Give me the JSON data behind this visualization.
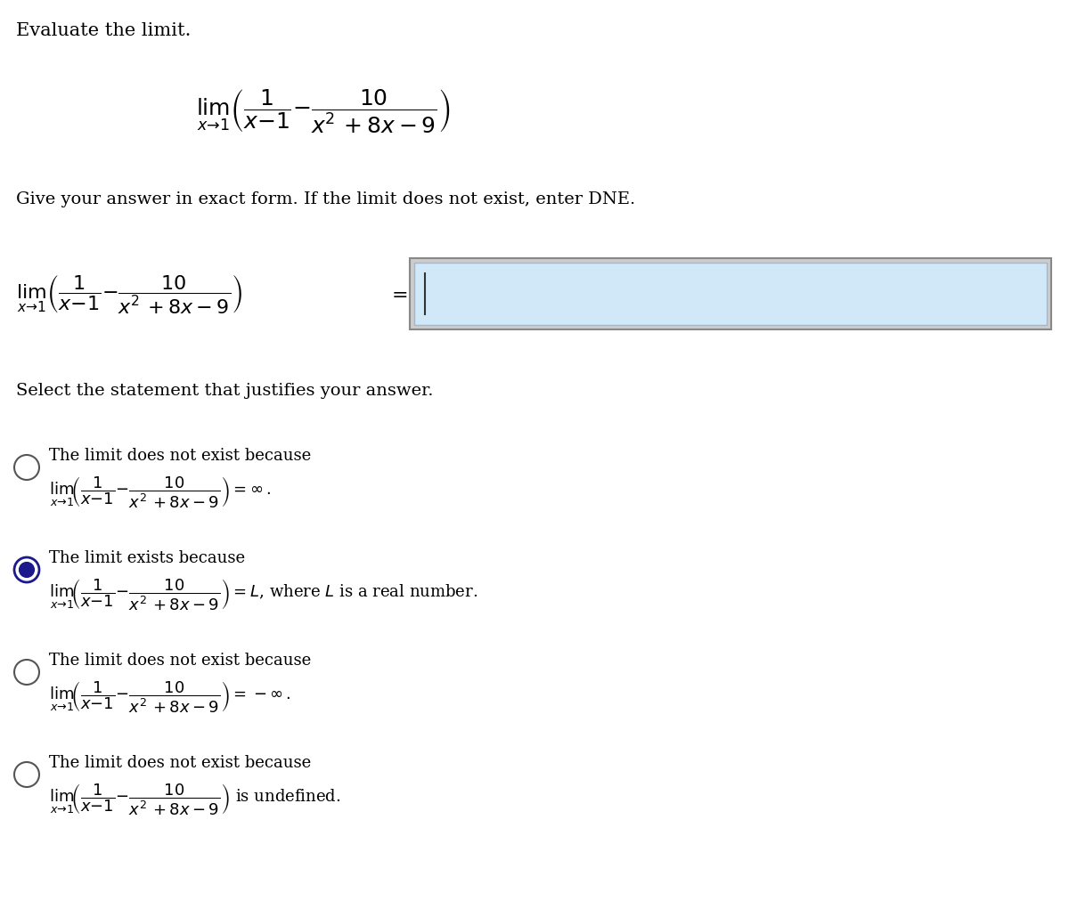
{
  "title": "Evaluate the limit.",
  "instruction": "Give your answer in exact form. If the limit does not exist, enter DNE.",
  "select_statement": "Select the statement that justifies your answer.",
  "main_formula": "$\\lim_{x\\to 1}\\left(\\dfrac{1}{x-1} - \\dfrac{10}{x^2+8x-9}\\right)$",
  "equals_sign": "=",
  "options": [
    {
      "text": "The limit does not exist because ",
      "formula": "$\\lim_{x\\to 1}\\left(\\dfrac{1}{x-1} - \\dfrac{10}{x^2+8x-9}\\right) = \\infty$.",
      "selected": false
    },
    {
      "text": "The limit exists because ",
      "formula": "$\\lim_{x\\to 1}\\left(\\dfrac{1}{x-1} - \\dfrac{10}{x^2+8x-9}\\right) = L$, where $L$ is a real number.",
      "selected": true
    },
    {
      "text": "The limit does not exist because ",
      "formula": "$\\lim_{x\\to 1}\\left(\\dfrac{1}{x-1} - \\dfrac{10}{x^2+8x-9}\\right) = -\\infty$.",
      "selected": false
    },
    {
      "text": "The limit does not exist because ",
      "formula": "$\\lim_{x\\to 1}\\left(\\dfrac{1}{x-1} - \\dfrac{10}{x^2+8x-9}\\right)$ is undefined.",
      "selected": false
    }
  ],
  "bg_color": "#ffffff",
  "text_color": "#000000",
  "input_box_color": "#d0e8f8",
  "input_box_border": "#a0b8d0",
  "selected_circle_fill": "#1a1a8c",
  "unselected_circle_edge": "#555555"
}
